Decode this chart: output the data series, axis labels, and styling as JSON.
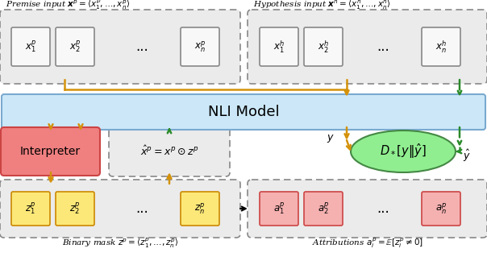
{
  "fig_width": 6.04,
  "fig_height": 3.24,
  "dpi": 100,
  "bg_color": "#ffffff",
  "orange": "#d4920a",
  "green": "#2a8a2a",
  "nli_label": "NLI Model",
  "nli_fc": "#cce8f8",
  "nli_ec": "#7aaad0",
  "interp_label": "Interpreter",
  "interp_fc": "#f08080",
  "interp_ec": "#cc4444",
  "ellipse_label": "$D_*[y\\|\\hat{y}]$",
  "ellipse_fc": "#90ee90",
  "ellipse_ec": "#448844",
  "premise_title": "Premise input $\\boldsymbol{x}^p = \\langle x_1^p, \\ldots, x_n^p \\rangle$",
  "hypothesis_title": "Hypothesis input $\\boldsymbol{x}^h = \\langle x_1^h, \\ldots, x_n^h \\rangle$",
  "binary_mask_title": "Binary mask $z^p = \\langle z_1^p, \\ldots, z_n^p \\rangle$",
  "attribution_title": "Attributions $a_i^p = \\mathbb{E}[z_i^p \\neq 0]$",
  "masked_eq": "$\\hat{x}^p = x^p \\odot z^p$",
  "premise_tokens": [
    "$x_1^p$",
    "$x_2^p$",
    "$x_n^p$"
  ],
  "hypothesis_tokens": [
    "$x_1^h$",
    "$x_2^h$",
    "$x_n^h$"
  ],
  "z_tokens": [
    "$z_1^p$",
    "$z_2^p$",
    "$z_n^p$"
  ],
  "a_tokens": [
    "$a_1^p$",
    "$a_2^p$",
    "$a_n^p$"
  ],
  "token_white_fc": "#f8f8f8",
  "token_white_ec": "#888888",
  "token_yellow_fc": "#fce878",
  "token_yellow_ec": "#cc8800",
  "token_pink_fc": "#f5b0b0",
  "token_pink_ec": "#cc4444",
  "outer_fc": "#e8e8e8",
  "outer_ec": "#888888"
}
